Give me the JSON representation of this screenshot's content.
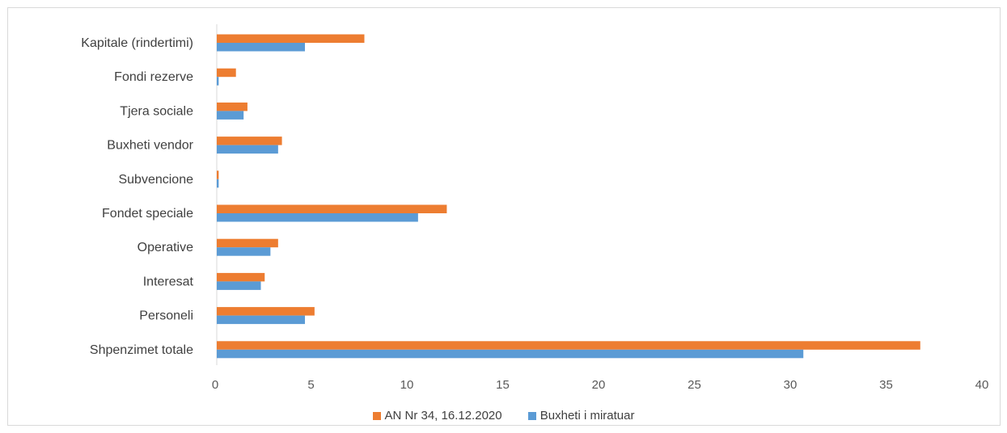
{
  "chart_data": {
    "type": "bar",
    "orientation": "horizontal",
    "title": "",
    "categories": [
      "Kapitale (rindertimi)",
      "Fondi rezerve",
      "Tjera sociale",
      "Buxheti vendor",
      "Subvencione",
      "Fondet speciale",
      "Operative",
      "Interesat",
      "Personeli",
      "Shpenzimet totale"
    ],
    "series": [
      {
        "name": "AN Nr 34, 16.12.2020",
        "color": "#ed7d31",
        "values": [
          7.7,
          1.0,
          1.6,
          3.4,
          0.1,
          12.0,
          3.2,
          2.5,
          5.1,
          36.7
        ]
      },
      {
        "name": "Buxheti i miratuar",
        "color": "#5b9bd5",
        "values": [
          4.6,
          0.1,
          1.4,
          3.2,
          0.1,
          10.5,
          2.8,
          2.3,
          4.6,
          30.6
        ]
      }
    ],
    "xlim": [
      0,
      40
    ],
    "xticks": [
      "0",
      "5",
      "10",
      "15",
      "20",
      "25",
      "30",
      "35",
      "40"
    ],
    "legend": "bottom",
    "grid": false
  }
}
